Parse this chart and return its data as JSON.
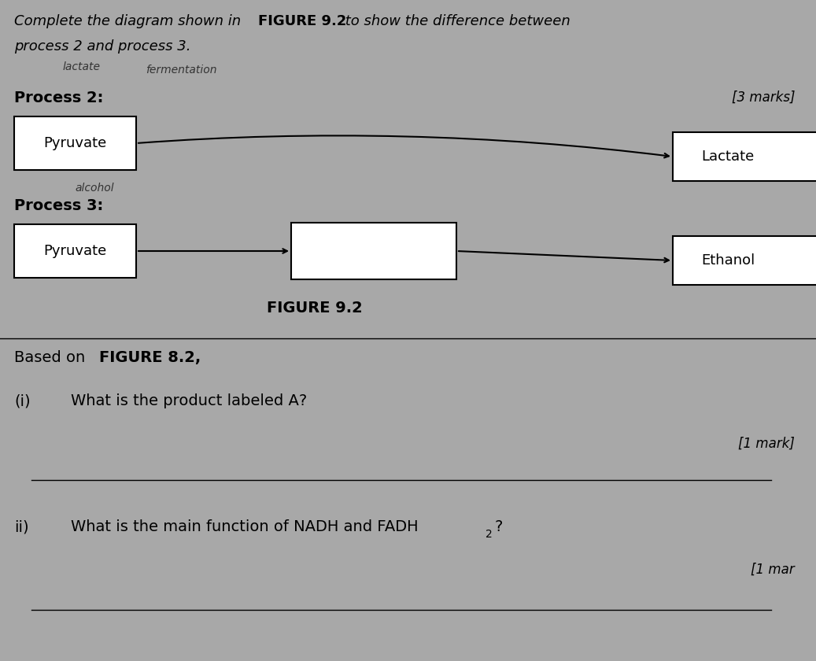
{
  "bg_color": "#a8a8a8",
  "process2_label": "Process 2:",
  "process3_label": "Process 3:",
  "marks_text": "[3 marks]",
  "box_pyruvate": "Pyruvate",
  "box_lactate": "Lactate",
  "box_ethanol": "Ethanol",
  "figure_label": "FIGURE 9.2",
  "based_bold": "FIGURE 8.2,",
  "qi_label": "(i)",
  "qi_text": "What is the product labeled A?",
  "mark1_text": "[1 mark]",
  "qii_label": "ii)",
  "qii_text": "What is the main function of NADH and FADH₂?",
  "mark2_text": "[1 mar",
  "handwritten_lactate": "lactate",
  "handwritten_ferm": "fermentation",
  "handwritten_alcohol": "alcohol"
}
